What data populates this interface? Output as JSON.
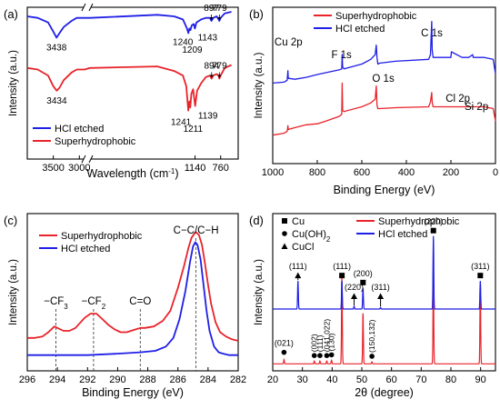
{
  "chart_data": [
    {
      "panel_label": "(a)",
      "type": "line",
      "xlabel": "Wavelength (cm",
      "xlabel_sup": "-1",
      "xlabel_end": ")",
      "ylabel": "Intensity (a.u.)",
      "xlim": [
        4000,
        500
      ],
      "x_break_at": [
        2900,
        2700
      ],
      "x_ticks": [
        "3500",
        "3000",
        "1140",
        "760"
      ],
      "grid": false,
      "legend_position": "lower-left",
      "series": [
        {
          "name": "HCl etched",
          "color": "#1f1fe6",
          "x": [
            4000,
            3800,
            3600,
            3500,
            3438,
            3380,
            3300,
            3150,
            3050,
            2900,
            2700,
            1700,
            1450,
            1320,
            1260,
            1240,
            1225,
            1209,
            1190,
            1160,
            1143,
            1120,
            1050,
            980,
            920,
            897,
            870,
            820,
            790,
            779,
            760,
            700,
            600
          ],
          "y": [
            0.94,
            0.93,
            0.9,
            0.84,
            0.8,
            0.83,
            0.87,
            0.91,
            0.93,
            0.93,
            0.93,
            0.95,
            0.94,
            0.92,
            0.86,
            0.83,
            0.86,
            0.85,
            0.88,
            0.89,
            0.86,
            0.9,
            0.92,
            0.93,
            0.93,
            0.91,
            0.93,
            0.94,
            0.92,
            0.91,
            0.93,
            0.96,
            0.97
          ]
        },
        {
          "name": "Superhydrophobic",
          "color": "#e8232a",
          "x": [
            4000,
            3800,
            3600,
            3500,
            3434,
            3380,
            3300,
            3150,
            3050,
            2900,
            2700,
            1700,
            1450,
            1320,
            1270,
            1241,
            1225,
            1211,
            1195,
            1170,
            1139,
            1110,
            1050,
            980,
            920,
            894,
            870,
            820,
            790,
            779,
            760,
            700,
            600
          ],
          "y": [
            0.6,
            0.59,
            0.55,
            0.48,
            0.45,
            0.47,
            0.52,
            0.57,
            0.59,
            0.59,
            0.6,
            0.61,
            0.58,
            0.55,
            0.48,
            0.32,
            0.38,
            0.34,
            0.43,
            0.46,
            0.35,
            0.45,
            0.5,
            0.54,
            0.55,
            0.53,
            0.55,
            0.56,
            0.55,
            0.53,
            0.55,
            0.6,
            0.62
          ]
        }
      ],
      "annotations": [
        {
          "text": "3438",
          "x": 3438,
          "series": 0
        },
        {
          "text": "1240",
          "x": 1240,
          "series": 0
        },
        {
          "text": "1209",
          "x": 1209,
          "series": 0
        },
        {
          "text": "1143",
          "x": 1143,
          "series": 0
        },
        {
          "text": "897",
          "x": 897,
          "series": 0
        },
        {
          "text": "779",
          "x": 779,
          "series": 0
        },
        {
          "text": "3434",
          "x": 3434,
          "series": 1
        },
        {
          "text": "1241",
          "x": 1241,
          "series": 1
        },
        {
          "text": "1211",
          "x": 1211,
          "series": 1
        },
        {
          "text": "1139",
          "x": 1139,
          "series": 1
        },
        {
          "text": "894",
          "x": 894,
          "series": 1
        },
        {
          "text": "779",
          "x": 779,
          "series": 1
        }
      ]
    },
    {
      "panel_label": "(b)",
      "type": "line",
      "xlabel": "Binding Energy (eV)",
      "ylabel": "Intensity (a.u.)",
      "xlim": [
        1000,
        0
      ],
      "x_ticks": [
        1000,
        800,
        600,
        400,
        200,
        0
      ],
      "grid": false,
      "legend_position": "top-center",
      "series": [
        {
          "name": "Superhydrophobic",
          "color": "#e8232a",
          "x": [
            1000,
            950,
            935,
            932,
            930,
            900,
            850,
            800,
            760,
            700,
            690,
            688,
            686,
            680,
            600,
            560,
            540,
            535,
            532,
            528,
            520,
            450,
            300,
            292,
            286,
            284,
            280,
            200,
            150,
            120,
            100,
            50,
            10,
            0
          ],
          "y": [
            0.3,
            0.32,
            0.34,
            0.4,
            0.36,
            0.38,
            0.41,
            0.42,
            0.45,
            0.5,
            0.52,
            0.85,
            0.56,
            0.55,
            0.6,
            0.64,
            0.68,
            0.82,
            0.62,
            0.58,
            0.58,
            0.59,
            0.6,
            0.65,
            0.75,
            0.65,
            0.6,
            0.6,
            0.6,
            0.6,
            0.6,
            0.6,
            0.58,
            0.45
          ]
        },
        {
          "name": "HCl etched",
          "color": "#1f1fe6",
          "x": [
            1000,
            950,
            935,
            932,
            930,
            900,
            850,
            800,
            760,
            700,
            690,
            688,
            686,
            680,
            600,
            560,
            540,
            535,
            532,
            528,
            520,
            450,
            300,
            292,
            286,
            284,
            280,
            200,
            198,
            150,
            120,
            102,
            100,
            50,
            10,
            0
          ],
          "y": [
            0.85,
            0.86,
            0.88,
            0.98,
            0.9,
            0.89,
            0.91,
            0.94,
            0.96,
            0.99,
            1.0,
            1.15,
            1.02,
            1.0,
            1.05,
            1.1,
            1.15,
            1.25,
            1.12,
            1.05,
            1.06,
            1.08,
            1.1,
            1.15,
            1.5,
            1.2,
            1.12,
            1.12,
            1.18,
            1.12,
            1.12,
            1.15,
            1.12,
            1.12,
            1.1,
            0.95
          ]
        }
      ],
      "annotations": [
        {
          "text": "Cu 2p",
          "x": 935
        },
        {
          "text": "F 1s",
          "x": 688
        },
        {
          "text": "O 1s",
          "x": 533
        },
        {
          "text": "C 1s",
          "x": 285
        },
        {
          "text": "Cl 2p",
          "x": 199
        },
        {
          "text": "Si 2p",
          "x": 102
        }
      ]
    },
    {
      "panel_label": "(c)",
      "type": "line",
      "xlabel": "Binding Energy (eV)",
      "ylabel": "Intensity (a.u.)",
      "xlim": [
        296,
        282
      ],
      "x_ticks": [
        296,
        294,
        292,
        290,
        288,
        286,
        284,
        282
      ],
      "grid": false,
      "legend_position": "top-left",
      "series": [
        {
          "name": "Superhydrophobic",
          "color": "#e8232a",
          "x": [
            296,
            295.5,
            295,
            294.6,
            294.2,
            294.0,
            293.6,
            293.2,
            292.8,
            292.2,
            291.8,
            291.4,
            291.0,
            290.6,
            290.2,
            289.8,
            289.4,
            288.8,
            288.5,
            288.2,
            287.6,
            287.0,
            286.5,
            286.0,
            285.6,
            285.3,
            285.1,
            284.9,
            284.8,
            284.6,
            284.4,
            284.2,
            284.0,
            283.8,
            283.5,
            283.2,
            282.8,
            282.4,
            282
          ],
          "y": [
            0.23,
            0.23,
            0.24,
            0.27,
            0.31,
            0.3,
            0.28,
            0.28,
            0.3,
            0.37,
            0.4,
            0.4,
            0.36,
            0.32,
            0.29,
            0.27,
            0.27,
            0.29,
            0.3,
            0.3,
            0.31,
            0.35,
            0.42,
            0.58,
            0.73,
            0.86,
            0.93,
            0.96,
            0.97,
            0.95,
            0.88,
            0.75,
            0.6,
            0.47,
            0.34,
            0.27,
            0.24,
            0.22,
            0.21
          ]
        },
        {
          "name": "HCl etched",
          "color": "#1f1fe6",
          "x": [
            296,
            294,
            292,
            290,
            288.5,
            287.5,
            286.8,
            286.3,
            285.9,
            285.5,
            285.2,
            285.0,
            284.85,
            284.7,
            284.5,
            284.3,
            284.1,
            283.9,
            283.6,
            283.3,
            283.0,
            282.6,
            282
          ],
          "y": [
            0.11,
            0.11,
            0.11,
            0.12,
            0.13,
            0.14,
            0.17,
            0.23,
            0.36,
            0.56,
            0.76,
            0.87,
            0.9,
            0.88,
            0.78,
            0.6,
            0.42,
            0.28,
            0.17,
            0.13,
            0.12,
            0.11,
            0.11
          ]
        }
      ],
      "annotations": [
        {
          "text": "C−C/C−H",
          "x": 284.8
        },
        {
          "text": "−CF",
          "sub": "3",
          "x": 294.1
        },
        {
          "text": "−CF",
          "sub": "2",
          "x": 291.6
        },
        {
          "text": "C=O",
          "x": 288.5
        }
      ]
    },
    {
      "panel_label": "(d)",
      "type": "line",
      "xlabel": "2θ (degree)",
      "ylabel": "Intensity (a.u.)",
      "xlim": [
        20,
        95
      ],
      "x_ticks": [
        20,
        30,
        40,
        50,
        60,
        70,
        80,
        90
      ],
      "grid": false,
      "legend_position": "top-center",
      "marker_legend": [
        {
          "symbol": "square",
          "label": "Cu"
        },
        {
          "symbol": "circle",
          "label": "Cu(OH)",
          "sub": "2",
          "label_end": ""
        },
        {
          "symbol": "triangle",
          "label": "CuCl"
        }
      ],
      "series": [
        {
          "name": "Superhydrophobic",
          "color": "#e8232a",
          "baseline": 0.05,
          "peaks": [
            {
              "x": 23.8,
              "h": 0.03
            },
            {
              "x": 34.0,
              "h": 0.02
            },
            {
              "x": 35.9,
              "h": 0.02
            },
            {
              "x": 38.2,
              "h": 0.02
            },
            {
              "x": 39.8,
              "h": 0.025
            },
            {
              "x": 43.3,
              "h": 0.62
            },
            {
              "x": 50.4,
              "h": 0.36
            },
            {
              "x": 53.4,
              "h": 0.015
            },
            {
              "x": 74.1,
              "h": 0.58
            },
            {
              "x": 89.9,
              "h": 0.52
            }
          ]
        },
        {
          "name": "HCl etched",
          "color": "#1f1fe6",
          "baseline": 0.44,
          "peaks": [
            {
              "x": 28.5,
              "h": 0.2
            },
            {
              "x": 43.3,
              "h": 0.2
            },
            {
              "x": 47.4,
              "h": 0.02
            },
            {
              "x": 50.4,
              "h": 0.15
            },
            {
              "x": 56.3,
              "h": 0.012
            },
            {
              "x": 74.1,
              "h": 0.52
            },
            {
              "x": 89.9,
              "h": 0.2
            }
          ]
        }
      ],
      "peak_labels": [
        {
          "text": "(111)",
          "x": 28.5,
          "marker": "triangle",
          "series": 1
        },
        {
          "text": "(111)",
          "x": 43.3,
          "marker": "square",
          "series": 1
        },
        {
          "text": "(220)",
          "x": 47.4,
          "marker": "triangle",
          "series": 1
        },
        {
          "text": "(200)",
          "x": 50.4,
          "marker": "square",
          "series": 1
        },
        {
          "text": "(311)",
          "x": 56.3,
          "marker": "triangle",
          "series": 1
        },
        {
          "text": "(220)",
          "x": 74.1,
          "marker": "square",
          "series": 1
        },
        {
          "text": "(311)",
          "x": 89.9,
          "marker": "square",
          "series": 1
        },
        {
          "text": "(021)",
          "x": 23.8,
          "marker": "circle",
          "series": 0
        },
        {
          "text": "(002)",
          "x": 34.0,
          "marker": "circle",
          "series": 0,
          "rotated": true
        },
        {
          "text": "(111)",
          "x": 35.9,
          "marker": "circle",
          "series": 0,
          "rotated": true
        },
        {
          "text": "(041,022)",
          "x": 38.2,
          "marker": "circle",
          "series": 0,
          "rotated": true
        },
        {
          "text": "(130)",
          "x": 39.8,
          "marker": "circle",
          "series": 0,
          "rotated": true
        },
        {
          "text": "(150,132)",
          "x": 53.4,
          "marker": "circle",
          "series": 0,
          "rotated": true
        }
      ]
    }
  ]
}
